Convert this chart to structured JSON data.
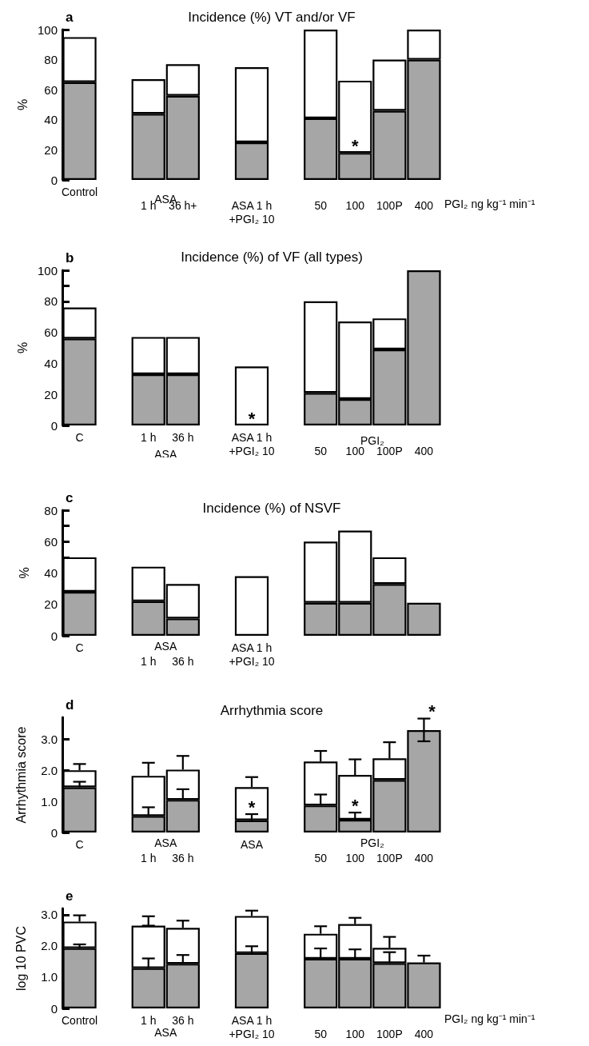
{
  "chart_data": [
    {
      "type": "bar",
      "stacked": true,
      "title": "Incidence (%) VT and/or VF",
      "ylabel": "%",
      "xlabel": "PGI₂ ng kg⁻¹ min⁻¹",
      "categories": [
        "Control",
        null,
        "1 h",
        "36 h+",
        null,
        "ASA 1 h\n+PGI₂ 10",
        null,
        "50",
        "100",
        "100P",
        "400"
      ],
      "series": [
        {
          "color": "#a6a6a6",
          "values": [
            65,
            null,
            44,
            56,
            null,
            25,
            null,
            41,
            18,
            46,
            80
          ]
        },
        {
          "color": "#ffffff",
          "values": [
            30,
            null,
            23,
            21,
            null,
            50,
            null,
            59,
            48,
            34,
            20
          ]
        }
      ],
      "ylim": [
        0,
        100
      ],
      "yticks": [
        0,
        {
          "value": 10,
          "label": null
        },
        20,
        {
          "value": 30,
          "label": null
        },
        40,
        {
          "value": 50,
          "label": null
        },
        60,
        {
          "value": 70,
          "label": null
        },
        80,
        {
          "value": 90,
          "label": null
        },
        100
      ],
      "annotations": [
        "a",
        "ASA",
        {
          "text": "*",
          "x": "100",
          "y": 18
        }
      ]
    },
    {
      "type": "bar",
      "stacked": true,
      "title": "Incidence (%) of VF (all types)",
      "ylabel": "%",
      "categories": [
        "C",
        null,
        "1 h",
        "36 h",
        null,
        "ASA 1 h\n+PGI₂ 10",
        null,
        "50",
        "100",
        "100P",
        "400"
      ],
      "series": [
        {
          "color": "#a6a6a6",
          "values": [
            56,
            null,
            33,
            33,
            null,
            null,
            null,
            21,
            17,
            49,
            100
          ]
        },
        {
          "color": "#ffffff",
          "values": [
            20,
            null,
            24,
            24,
            null,
            38,
            null,
            59,
            50,
            20,
            null
          ]
        }
      ],
      "ylim": [
        0,
        100
      ],
      "yticks": [
        0,
        {
          "value": 10,
          "label": null
        },
        20,
        {
          "value": 30,
          "label": null
        },
        40,
        {
          "value": 50,
          "label": null
        },
        60,
        {
          "value": 70,
          "label": null
        },
        80,
        {
          "value": 90,
          "label": null
        },
        100
      ],
      "annotations": [
        "b",
        "ASA",
        "PGI₂",
        {
          "text": "*",
          "x": "ASA 1 h\n+PGI₂ 10",
          "y": 0
        }
      ]
    },
    {
      "type": "bar",
      "stacked": true,
      "title": "Incidence (%) of NSVF",
      "ylabel": "%",
      "categories": [
        "C",
        null,
        "1 h",
        "36 h",
        null,
        "ASA 1 h\n+PGI₂ 10",
        null,
        null,
        null,
        null,
        null
      ],
      "series": [
        {
          "color": "#a6a6a6",
          "values": [
            28,
            null,
            22,
            11,
            null,
            null,
            null,
            21,
            21,
            33,
            21
          ]
        },
        {
          "color": "#ffffff",
          "values": [
            22,
            null,
            22,
            22,
            null,
            38,
            null,
            39,
            46,
            17,
            null
          ]
        }
      ],
      "ylim": [
        0,
        80
      ],
      "yticks": [
        0,
        {
          "value": 10,
          "label": null
        },
        20,
        {
          "value": 30,
          "label": null
        },
        40,
        {
          "value": 50,
          "label": null
        },
        60,
        {
          "value": 70,
          "label": null
        },
        80
      ],
      "annotations": [
        "c",
        "ASA"
      ]
    },
    {
      "type": "bar",
      "stacked": true,
      "title": "Arrhythmia score",
      "ylabel": "Arrhythmia score",
      "categories": [
        "C",
        null,
        "1 h",
        "36 h",
        null,
        "ASA",
        null,
        "50",
        "100",
        "100P",
        "400"
      ],
      "series": [
        {
          "color": "#a6a6a6",
          "values": [
            1.45,
            null,
            0.53,
            1.05,
            null,
            0.39,
            null,
            0.87,
            0.41,
            1.69,
            3.29
          ],
          "errors": [
            [
              1.45,
              1.63
            ],
            null,
            [
              0.53,
              0.81
            ],
            [
              1.05,
              1.39
            ],
            null,
            [
              0.39,
              0.59
            ],
            null,
            [
              0.87,
              1.22
            ],
            [
              0.41,
              0.64
            ],
            null,
            [
              2.93,
              3.66
            ]
          ]
        },
        {
          "color": "#ffffff",
          "values": [
            0.55,
            null,
            1.29,
            0.97,
            null,
            1.07,
            null,
            1.41,
            1.44,
            0.69,
            null
          ],
          "errors": [
            [
              2.0,
              2.2
            ],
            null,
            [
              1.82,
              2.24
            ],
            [
              2.02,
              2.46
            ],
            null,
            [
              1.46,
              1.78
            ],
            null,
            [
              2.28,
              2.62
            ],
            [
              1.85,
              2.35
            ],
            [
              2.38,
              2.9
            ],
            null
          ]
        }
      ],
      "ylim": [
        0,
        3.7
      ],
      "yticks": [
        0,
        {
          "value": 1,
          "label": "1.0"
        },
        {
          "value": 2,
          "label": "2.0"
        },
        {
          "value": 3,
          "label": "3.0"
        }
      ],
      "annotations": [
        "d",
        "ASA",
        "PGI₂",
        {
          "text": "*",
          "x": "ASA",
          "y": 0.59
        },
        {
          "text": "*",
          "x": "100",
          "y": 0.64
        },
        {
          "text": "*",
          "x": "400",
          "y": 3.66
        }
      ]
    },
    {
      "type": "bar",
      "stacked": true,
      "ylabel": "log 10 PVC",
      "xlabel": "PGI₂ ng kg⁻¹ min⁻¹",
      "categories": [
        "Control",
        null,
        "1 h",
        "36 h",
        null,
        "ASA 1 h\n+PGI₂ 10",
        null,
        "50",
        "100",
        "100P",
        "400"
      ],
      "series": [
        {
          "color": "#a6a6a6",
          "values": [
            1.93,
            null,
            1.29,
            1.43,
            null,
            1.77,
            null,
            1.59,
            1.59,
            1.45,
            1.47
          ],
          "errors": [
            [
              1.93,
              2.05
            ],
            null,
            [
              1.29,
              1.6
            ],
            [
              1.43,
              1.71
            ],
            null,
            [
              1.77,
              1.99
            ],
            null,
            [
              1.59,
              1.92
            ],
            [
              1.59,
              1.89
            ],
            [
              1.45,
              1.8
            ],
            [
              1.47,
              1.69
            ]
          ]
        },
        {
          "color": "#ffffff",
          "values": [
            0.85,
            null,
            1.36,
            1.15,
            null,
            1.19,
            null,
            0.8,
            1.11,
            0.49,
            null
          ],
          "errors": [
            [
              2.78,
              2.98
            ],
            null,
            [
              2.65,
              2.95
            ],
            [
              2.58,
              2.81
            ],
            null,
            [
              2.96,
              3.13
            ],
            null,
            [
              2.39,
              2.63
            ],
            [
              2.7,
              2.9
            ],
            [
              1.94,
              2.29
            ],
            null
          ]
        }
      ],
      "ylim": [
        0,
        3.2
      ],
      "yticks": [
        0,
        {
          "value": 1,
          "label": "1.0"
        },
        {
          "value": 2,
          "label": "2.0"
        },
        {
          "value": 3,
          "label": "3.0"
        }
      ],
      "annotations": [
        "e",
        "ASA"
      ]
    }
  ]
}
